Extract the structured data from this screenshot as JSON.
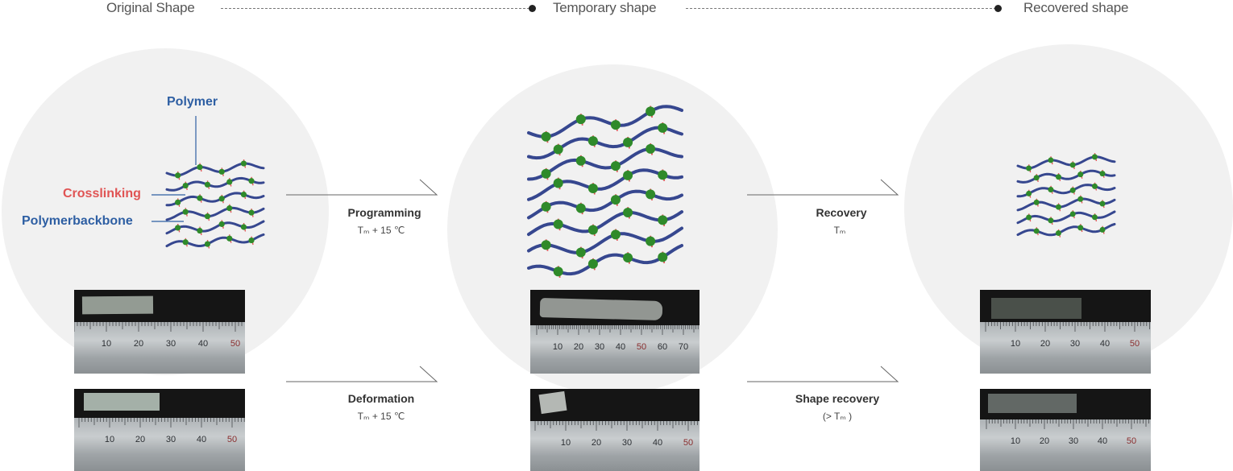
{
  "stages": {
    "original": "Original Shape",
    "temporary": "Temporary shape",
    "recovered": "Recovered shape"
  },
  "labels": {
    "polymer": "Polymer",
    "crosslinking": "Crosslinking",
    "backbone": "Polymerbackbone"
  },
  "steps": {
    "programming": {
      "title": "Programming",
      "condition": "Tₘ + 15 ℃"
    },
    "recovery": {
      "title": "Recovery",
      "condition": "Tₘ"
    },
    "deformation": {
      "title": "Deformation",
      "condition": "Tₘ + 15 ℃"
    },
    "shape_recovery": {
      "title": "Shape recovery",
      "condition": "(> Tₘ )"
    }
  },
  "ruler_ticks": {
    "photo1": [
      "10",
      "20",
      "30",
      "40",
      "50"
    ],
    "photo2": [
      "10",
      "20",
      "30",
      "40",
      "50",
      "60",
      "70"
    ],
    "photo3": [
      "10",
      "20",
      "30",
      "40",
      "50"
    ],
    "photo4": [
      "10",
      "20",
      "30",
      "40",
      "50"
    ],
    "photo5": [
      "10",
      "20",
      "30",
      "40",
      "50"
    ],
    "photo6": [
      "10",
      "20",
      "30",
      "40",
      "50"
    ]
  },
  "colors": {
    "polymer_blue": "#2e5fa3",
    "crosslink_red": "#e05454",
    "node_green": "#2f8a2a",
    "chain_navy": "#36478f"
  }
}
